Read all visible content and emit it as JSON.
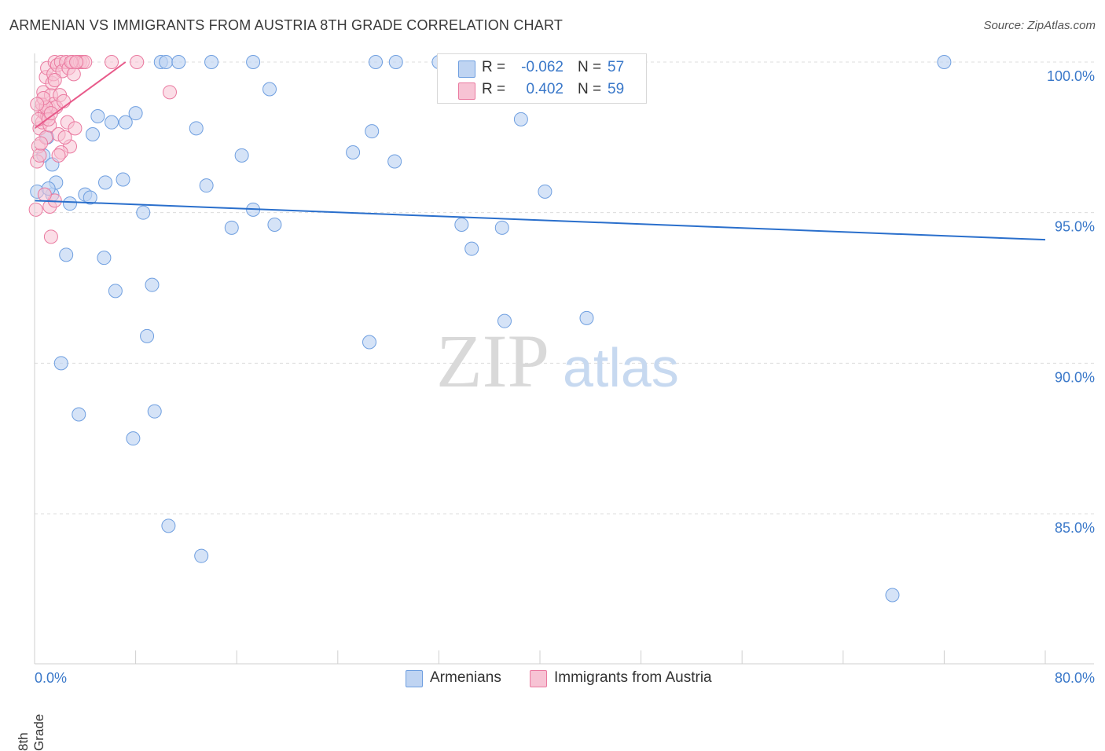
{
  "title": "ARMENIAN VS IMMIGRANTS FROM AUSTRIA 8TH GRADE CORRELATION CHART",
  "source": "Source: ZipAtlas.com",
  "watermark": {
    "zip": "ZIP",
    "atlas": "atlas"
  },
  "colors": {
    "blue": "#6f9fe0",
    "blue_fill": "#bfd4f2",
    "blue_line": "#2a6fcc",
    "pink": "#ea7aa0",
    "pink_fill": "#f7c3d4",
    "pink_line": "#e85a8a",
    "grid": "#dcdcdc",
    "axis_text": "#3a78c9"
  },
  "legend": {
    "rows": [
      {
        "r_label": "R =",
        "r_value": "-0.062",
        "n_label": "N =",
        "n_value": "57"
      },
      {
        "r_label": "R =",
        "r_value": "0.402",
        "n_label": "N =",
        "n_value": "59"
      }
    ]
  },
  "bottom_legend": [
    "Armenians",
    "Immigrants from Austria"
  ],
  "chart_data": {
    "type": "scatter",
    "title": "ARMENIAN VS IMMIGRANTS FROM AUSTRIA 8TH GRADE CORRELATION CHART",
    "xlabel": "",
    "ylabel": "8th Grade",
    "xlim": [
      0,
      80
    ],
    "ylim": [
      80.5,
      100.6
    ],
    "x_tick_labels": [
      "0.0%",
      "80.0%"
    ],
    "y_ticks": [
      85,
      90,
      95,
      100
    ],
    "y_tick_labels": [
      "85.0%",
      "90.0%",
      "95.0%",
      "100.0%"
    ],
    "grid": true,
    "series": [
      {
        "name": "Armenians",
        "trend": {
          "x": [
            0,
            80
          ],
          "y": [
            95.4,
            94.1
          ]
        },
        "points": [
          [
            0.2,
            95.7
          ],
          [
            0.7,
            96.9
          ],
          [
            1.0,
            97.5
          ],
          [
            1.4,
            95.6
          ],
          [
            1.7,
            96.0
          ],
          [
            1.4,
            96.6
          ],
          [
            2.8,
            95.3
          ],
          [
            2.5,
            93.6
          ],
          [
            2.1,
            90.0
          ],
          [
            3.5,
            88.3
          ],
          [
            4.0,
            95.6
          ],
          [
            4.4,
            95.5
          ],
          [
            4.6,
            97.6
          ],
          [
            5.0,
            98.2
          ],
          [
            5.5,
            93.5
          ],
          [
            5.6,
            96.0
          ],
          [
            6.1,
            98.0
          ],
          [
            6.4,
            92.4
          ],
          [
            7.0,
            96.1
          ],
          [
            7.2,
            98.0
          ],
          [
            8.0,
            98.3
          ],
          [
            7.8,
            87.5
          ],
          [
            8.6,
            95.0
          ],
          [
            8.9,
            90.9
          ],
          [
            9.3,
            92.6
          ],
          [
            9.5,
            88.4
          ],
          [
            10.0,
            100.0
          ],
          [
            10.4,
            100.0
          ],
          [
            10.6,
            84.6
          ],
          [
            11.4,
            100.0
          ],
          [
            12.8,
            97.8
          ],
          [
            13.2,
            83.6
          ],
          [
            13.6,
            95.9
          ],
          [
            14.0,
            100.0
          ],
          [
            15.6,
            94.5
          ],
          [
            16.4,
            96.9
          ],
          [
            17.3,
            95.1
          ],
          [
            17.3,
            100.0
          ],
          [
            19.0,
            94.6
          ],
          [
            18.6,
            99.1
          ],
          [
            25.2,
            97.0
          ],
          [
            26.5,
            90.7
          ],
          [
            26.7,
            97.7
          ],
          [
            27.0,
            100.0
          ],
          [
            28.5,
            96.7
          ],
          [
            28.6,
            100.0
          ],
          [
            32.0,
            100.0
          ],
          [
            33.8,
            94.6
          ],
          [
            34.6,
            93.8
          ],
          [
            37.0,
            94.5
          ],
          [
            37.2,
            91.4
          ],
          [
            38.5,
            98.1
          ],
          [
            40.4,
            95.7
          ],
          [
            43.7,
            91.5
          ],
          [
            67.9,
            82.3
          ],
          [
            72.0,
            100.0
          ],
          [
            1.1,
            95.8
          ]
        ]
      },
      {
        "name": "Immigrants from Austria",
        "trend": {
          "x": [
            0,
            7.2
          ],
          "y": [
            97.8,
            100.0
          ]
        },
        "points": [
          [
            0.1,
            95.1
          ],
          [
            0.2,
            96.7
          ],
          [
            0.3,
            97.2
          ],
          [
            0.4,
            97.8
          ],
          [
            0.5,
            98.4
          ],
          [
            0.6,
            98.0
          ],
          [
            0.6,
            98.6
          ],
          [
            0.7,
            99.0
          ],
          [
            0.8,
            98.3
          ],
          [
            0.9,
            97.5
          ],
          [
            0.9,
            99.5
          ],
          [
            1.0,
            98.2
          ],
          [
            1.0,
            99.8
          ],
          [
            1.1,
            98.5
          ],
          [
            1.2,
            95.2
          ],
          [
            1.2,
            97.9
          ],
          [
            1.3,
            98.9
          ],
          [
            1.4,
            99.3
          ],
          [
            1.5,
            98.6
          ],
          [
            1.5,
            99.6
          ],
          [
            1.6,
            100.0
          ],
          [
            1.7,
            98.5
          ],
          [
            1.8,
            99.9
          ],
          [
            1.9,
            97.6
          ],
          [
            2.0,
            98.9
          ],
          [
            2.1,
            100.0
          ],
          [
            2.2,
            99.7
          ],
          [
            2.3,
            98.7
          ],
          [
            2.5,
            100.0
          ],
          [
            2.6,
            98.0
          ],
          [
            2.7,
            99.8
          ],
          [
            2.8,
            97.2
          ],
          [
            3.0,
            100.0
          ],
          [
            3.1,
            99.6
          ],
          [
            3.2,
            97.8
          ],
          [
            3.4,
            100.0
          ],
          [
            3.6,
            100.0
          ],
          [
            3.8,
            100.0
          ],
          [
            4.0,
            100.0
          ],
          [
            1.3,
            94.2
          ],
          [
            1.6,
            95.4
          ],
          [
            0.8,
            95.6
          ],
          [
            2.1,
            97.0
          ],
          [
            0.4,
            96.9
          ],
          [
            6.1,
            100.0
          ],
          [
            8.1,
            100.0
          ],
          [
            10.7,
            99.0
          ],
          [
            0.3,
            98.1
          ],
          [
            0.9,
            98.5
          ],
          [
            1.1,
            98.1
          ],
          [
            1.3,
            98.3
          ],
          [
            0.5,
            97.3
          ],
          [
            0.7,
            98.8
          ],
          [
            1.9,
            96.9
          ],
          [
            2.4,
            97.5
          ],
          [
            2.9,
            100.0
          ],
          [
            3.3,
            100.0
          ],
          [
            1.6,
            99.4
          ],
          [
            0.2,
            98.6
          ]
        ]
      }
    ]
  }
}
